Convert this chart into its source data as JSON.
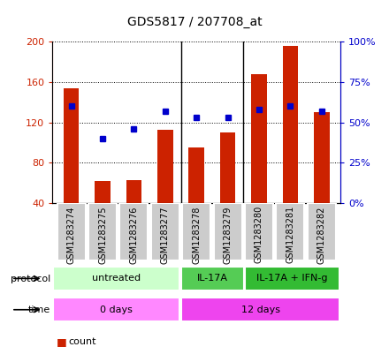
{
  "title": "GDS5817 / 207708_at",
  "samples": [
    "GSM1283274",
    "GSM1283275",
    "GSM1283276",
    "GSM1283277",
    "GSM1283278",
    "GSM1283279",
    "GSM1283280",
    "GSM1283281",
    "GSM1283282"
  ],
  "counts": [
    154,
    62,
    63,
    113,
    95,
    110,
    168,
    196,
    130
  ],
  "percentiles": [
    60,
    40,
    46,
    57,
    53,
    53,
    58,
    60,
    57
  ],
  "ylim_left": [
    40,
    200
  ],
  "ylim_right": [
    0,
    100
  ],
  "yticks_left": [
    40,
    80,
    120,
    160,
    200
  ],
  "yticks_right": [
    0,
    25,
    50,
    75,
    100
  ],
  "bar_color": "#cc2200",
  "dot_color": "#0000cc",
  "bar_bottom": 40,
  "protocol_groups": [
    {
      "label": "untreated",
      "start": 0,
      "end": 4,
      "color": "#ccffcc"
    },
    {
      "label": "IL-17A",
      "start": 4,
      "end": 6,
      "color": "#55cc55"
    },
    {
      "label": "IL-17A + IFN-g",
      "start": 6,
      "end": 9,
      "color": "#33bb33"
    }
  ],
  "time_groups": [
    {
      "label": "0 days",
      "start": 0,
      "end": 4,
      "color": "#ff88ff"
    },
    {
      "label": "12 days",
      "start": 4,
      "end": 9,
      "color": "#ee44ee"
    }
  ],
  "group_dividers": [
    4,
    6
  ],
  "legend_count_color": "#cc2200",
  "legend_dot_color": "#0000cc",
  "sample_label_bg": "#cccccc"
}
